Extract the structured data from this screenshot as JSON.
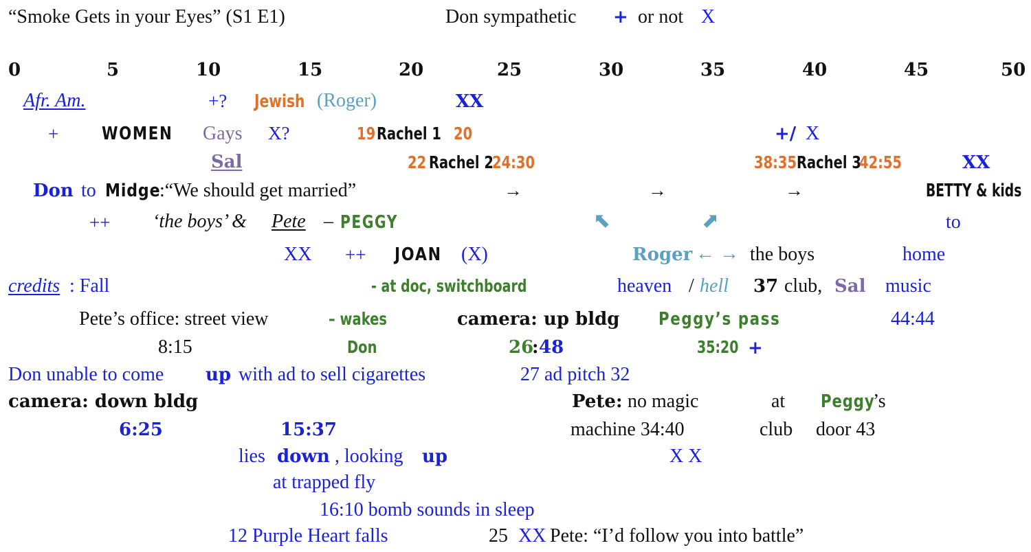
{
  "header": {
    "title": "“Smoke Gets in your Eyes” (S1 E1)",
    "legend_label": "Don sympathetic",
    "legend_plus": "+",
    "legend_or": "or not",
    "legend_x": "X"
  },
  "axis": {
    "ticks": [
      "0",
      "5",
      "10",
      "15",
      "20",
      "25",
      "30",
      "35",
      "40",
      "45",
      "50"
    ]
  },
  "row1": {
    "afr_am": "Afr. Am.",
    "plus_q": "+?",
    "jewish": "Jewish",
    "roger": "(Roger)",
    "xx": "XX"
  },
  "row2": {
    "plus": "+",
    "women": "WOMEN",
    "gays": "Gays",
    "x_q": "X?",
    "r1_start": "19",
    "r1_label": "Rachel 1",
    "r1_end": "20",
    "plus_slash": "+/",
    "x": "X"
  },
  "row3": {
    "sal": "Sal",
    "r2_start": "22",
    "r2_label": "Rachel 2",
    "r2_end": "24:30",
    "r3_start": "38:35",
    "r3_label": "Rachel 3",
    "r3_end": "42:55",
    "xx": "XX"
  },
  "row4": {
    "don": "Don",
    "to": "to",
    "midge": "Midge",
    "quote": ":“We should get married”",
    "arrow": "→",
    "betty": "BETTY & kids"
  },
  "row5": {
    "plusplus": "++",
    "the_boys": "‘the boys’ &",
    "pete": "Pete",
    "dash": "–",
    "peggy": "PEGGY",
    "up_left": "⬉",
    "up_right": "⬈",
    "to": "to"
  },
  "row6": {
    "xx": "XX",
    "plusplus": "++",
    "joan": "JOAN",
    "x_paren": "(X)",
    "roger": "Roger",
    "left_right": "← →",
    "the_boys": "the boys",
    "home": "home"
  },
  "row7": {
    "credits": "credits",
    "fall": ": Fall",
    "doc": "- at doc, switchboard",
    "heaven": "heaven",
    "slash": "/",
    "hell": "hell",
    "club_num": "37",
    "club": "club,",
    "sal": "Sal",
    "music": "music"
  },
  "row8": {
    "petes_office": "Pete’s office: street view",
    "wakes": "– wakes",
    "camera_up": "camera: up bldg",
    "peggys_pass": "Peggy’s pass",
    "t44": "44:44"
  },
  "row9": {
    "t815": "8:15",
    "don": "Don",
    "t26": "26",
    "colon": ":",
    "t48": "48",
    "t3520": "35:20",
    "plus": "+"
  },
  "row10": {
    "don_unable_a": "Don unable to come",
    "up": "up",
    "don_unable_b": "with ad to sell cigarettes",
    "ad_pitch": "27 ad pitch 32"
  },
  "row11": {
    "camera_down": "camera: down bldg",
    "pete": "Pete:",
    "no_magic": "no magic",
    "at": "at",
    "peggy": "Peggy",
    "peggy_s": "’s"
  },
  "row12": {
    "t625": "6:25",
    "t1537": "15:37",
    "machine": "machine 34:40",
    "club": "club",
    "door": "door 43"
  },
  "row13": {
    "lies": "lies",
    "down": "down",
    "looking": ", looking",
    "up": "up",
    "xx": "X X"
  },
  "row14": {
    "trapped": "at trapped fly"
  },
  "row15": {
    "bomb": "16:10 bomb sounds in sleep"
  },
  "row16": {
    "purple": "12 Purple Heart falls",
    "num25": "25",
    "xx": "XX",
    "pete_quote": "Pete: “I’d follow you into battle”"
  },
  "colors": {
    "blue": "#1a22d6",
    "orange": "#e0702a",
    "light_blue": "#5b9fc1",
    "purple": "#7b6aa7",
    "green": "#3d7f2c",
    "black": "#111111"
  }
}
